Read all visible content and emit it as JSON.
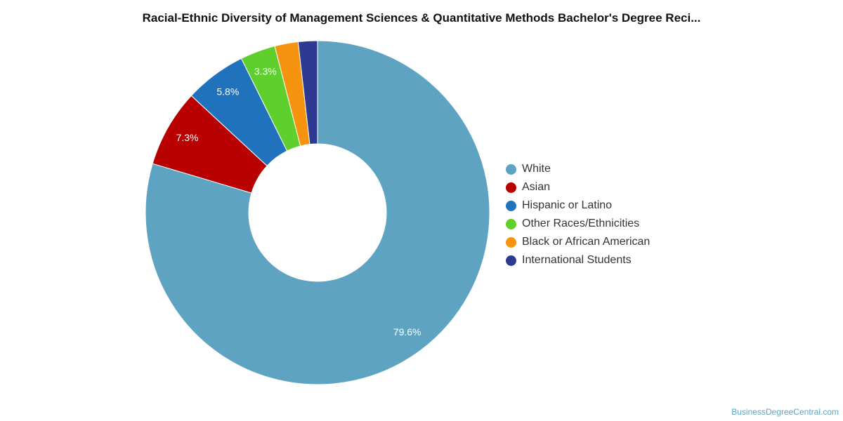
{
  "chart_data": {
    "type": "pie",
    "donut": true,
    "title": "Racial-Ethnic Diversity of Management Sciences & Quantitative Methods Bachelor's Degree Reci...",
    "legend_position": "right",
    "series": [
      {
        "name": "White",
        "value": 79.6,
        "label": "79.6%",
        "color": "#5ea3c2"
      },
      {
        "name": "Asian",
        "value": 7.3,
        "label": "7.3%",
        "color": "#b80000"
      },
      {
        "name": "Hispanic or Latino",
        "value": 5.8,
        "label": "5.8%",
        "color": "#1f72bb"
      },
      {
        "name": "Other Races/Ethnicities",
        "value": 3.3,
        "label": "3.3%",
        "color": "#5ecf2d"
      },
      {
        "name": "Black or African American",
        "value": 2.2,
        "label": "",
        "color": "#f7940f"
      },
      {
        "name": "International Students",
        "value": 1.8,
        "label": "",
        "color": "#2e3a91"
      }
    ]
  },
  "watermark": "BusinessDegreeCentral.com"
}
